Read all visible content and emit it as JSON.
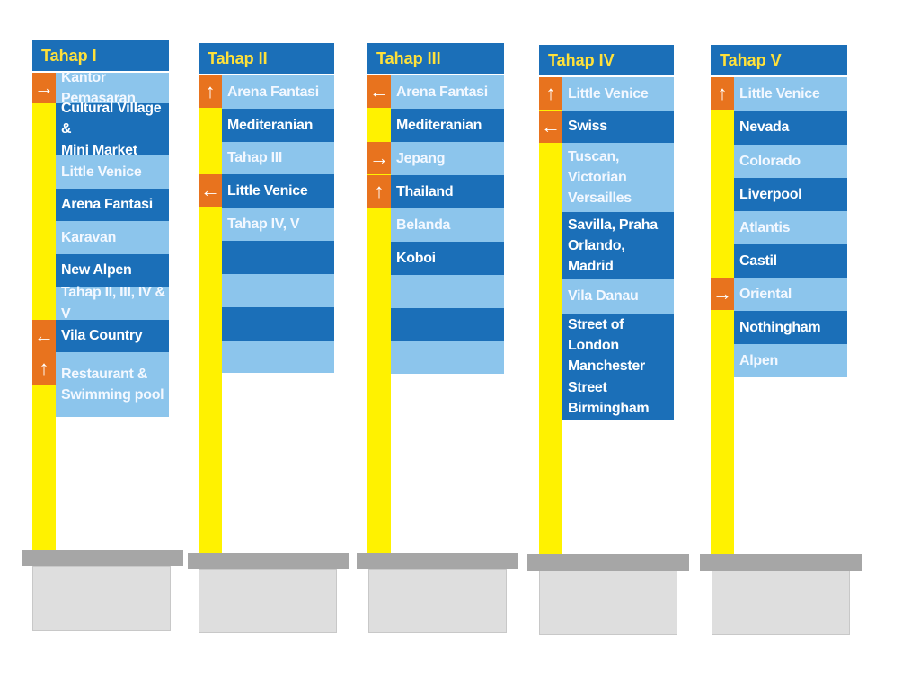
{
  "colors": {
    "header": "#1b6fb8",
    "header_text": "#ffe13a",
    "row_dark": "#1b6fb8",
    "row_light": "#8cc5ec",
    "arrow": "#e8731e",
    "post": "#fff200",
    "base_top": "#a6a6a6",
    "base_block": "#dedede"
  },
  "signs": [
    {
      "title": "Tahap I",
      "rows": [
        {
          "lines": [
            "Kantor Pemasaran"
          ],
          "tone": "light",
          "arrow": "right"
        },
        {
          "lines": [
            "Cultural Village &",
            "Mini Market"
          ],
          "tone": "dark",
          "arrow": ""
        },
        {
          "lines": [
            "Little Venice"
          ],
          "tone": "light",
          "arrow": ""
        },
        {
          "lines": [
            "Arena Fantasi"
          ],
          "tone": "dark",
          "arrow": ""
        },
        {
          "lines": [
            "Karavan"
          ],
          "tone": "light",
          "arrow": ""
        },
        {
          "lines": [
            "New Alpen"
          ],
          "tone": "dark",
          "arrow": ""
        },
        {
          "lines": [
            "Tahap II, III, IV & V"
          ],
          "tone": "light",
          "arrow": ""
        },
        {
          "lines": [
            "Vila Country"
          ],
          "tone": "dark",
          "arrow": "left"
        },
        {
          "lines": [
            "Restaurant &",
            "Swimming pool"
          ],
          "tone": "light",
          "arrow": "up"
        }
      ]
    },
    {
      "title": "Tahap II",
      "rows": [
        {
          "lines": [
            "Arena Fantasi"
          ],
          "tone": "light",
          "arrow": "up"
        },
        {
          "lines": [
            "Mediteranian"
          ],
          "tone": "dark",
          "arrow": ""
        },
        {
          "lines": [
            "Tahap III"
          ],
          "tone": "light",
          "arrow": ""
        },
        {
          "lines": [
            "Little Venice"
          ],
          "tone": "dark",
          "arrow": "left"
        },
        {
          "lines": [
            "Tahap IV, V"
          ],
          "tone": "light",
          "arrow": ""
        },
        {
          "lines": [
            ""
          ],
          "tone": "dark",
          "arrow": ""
        },
        {
          "lines": [
            ""
          ],
          "tone": "light",
          "arrow": ""
        },
        {
          "lines": [
            ""
          ],
          "tone": "dark",
          "arrow": ""
        },
        {
          "lines": [
            ""
          ],
          "tone": "light",
          "arrow": ""
        }
      ]
    },
    {
      "title": "Tahap III",
      "rows": [
        {
          "lines": [
            "Arena Fantasi"
          ],
          "tone": "light",
          "arrow": "left"
        },
        {
          "lines": [
            "Mediteranian"
          ],
          "tone": "dark",
          "arrow": ""
        },
        {
          "lines": [
            "Jepang"
          ],
          "tone": "light",
          "arrow": "right"
        },
        {
          "lines": [
            "Thailand"
          ],
          "tone": "dark",
          "arrow": "up"
        },
        {
          "lines": [
            "Belanda"
          ],
          "tone": "light",
          "arrow": ""
        },
        {
          "lines": [
            "Koboi"
          ],
          "tone": "dark",
          "arrow": ""
        },
        {
          "lines": [
            ""
          ],
          "tone": "light",
          "arrow": ""
        },
        {
          "lines": [
            ""
          ],
          "tone": "dark",
          "arrow": ""
        },
        {
          "lines": [
            ""
          ],
          "tone": "light",
          "arrow": ""
        }
      ]
    },
    {
      "title": "Tahap IV",
      "rows": [
        {
          "lines": [
            "Little Venice"
          ],
          "tone": "light",
          "arrow": "up"
        },
        {
          "lines": [
            "Swiss"
          ],
          "tone": "dark",
          "arrow": "left"
        },
        {
          "lines": [
            "Tuscan, Victorian",
            "Versailles"
          ],
          "tone": "light",
          "arrow": ""
        },
        {
          "lines": [
            "Savilla, Praha",
            "Orlando, Madrid"
          ],
          "tone": "dark",
          "arrow": ""
        },
        {
          "lines": [
            "Vila Danau"
          ],
          "tone": "light",
          "arrow": ""
        },
        {
          "lines": [
            "Street of London",
            "Manchester Street",
            "Birmingham"
          ],
          "tone": "dark",
          "arrow": ""
        }
      ]
    },
    {
      "title": "Tahap V",
      "rows": [
        {
          "lines": [
            "Little Venice"
          ],
          "tone": "light",
          "arrow": "up"
        },
        {
          "lines": [
            "Nevada"
          ],
          "tone": "dark",
          "arrow": ""
        },
        {
          "lines": [
            "Colorado"
          ],
          "tone": "light",
          "arrow": ""
        },
        {
          "lines": [
            "Liverpool"
          ],
          "tone": "dark",
          "arrow": ""
        },
        {
          "lines": [
            "Atlantis"
          ],
          "tone": "light",
          "arrow": ""
        },
        {
          "lines": [
            "Castil"
          ],
          "tone": "dark",
          "arrow": ""
        },
        {
          "lines": [
            "Oriental"
          ],
          "tone": "light",
          "arrow": "right"
        },
        {
          "lines": [
            "Nothingham"
          ],
          "tone": "dark",
          "arrow": ""
        },
        {
          "lines": [
            "Alpen"
          ],
          "tone": "light",
          "arrow": ""
        }
      ]
    }
  ]
}
